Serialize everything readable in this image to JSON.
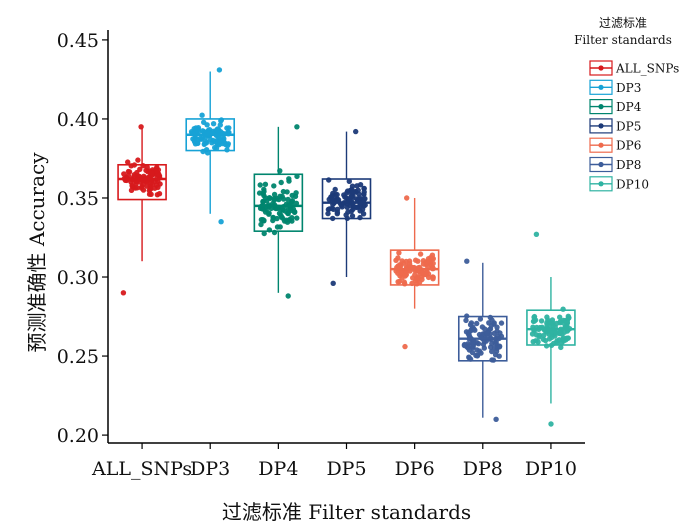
{
  "chart_data": {
    "type": "box",
    "xlabel": "过滤标准 Filter standards",
    "ylabel": "预测准确性 Accuracy",
    "ylim": [
      0.195,
      0.455
    ],
    "yticks": [
      "0.20",
      "0.25",
      "0.30",
      "0.35",
      "0.40",
      "0.45"
    ],
    "grid": false,
    "legend_position": "right",
    "legend_title": [
      "过滤标准",
      "Filter standards"
    ],
    "categories": [
      "ALL_SNPs",
      "DP3",
      "DP4",
      "DP5",
      "DP6",
      "DP8",
      "DP10"
    ],
    "series": [
      {
        "name": "ALL_SNPs",
        "color": "#d7191c",
        "whisker_low": 0.31,
        "q1": 0.349,
        "median": 0.362,
        "q3": 0.371,
        "whisker_high": 0.394,
        "min": 0.29,
        "max": 0.395
      },
      {
        "name": "DP3",
        "color": "#17a2d6",
        "whisker_low": 0.34,
        "q1": 0.38,
        "median": 0.39,
        "q3": 0.4,
        "whisker_high": 0.43,
        "min": 0.335,
        "max": 0.431
      },
      {
        "name": "DP4",
        "color": "#00856e",
        "whisker_low": 0.29,
        "q1": 0.329,
        "median": 0.345,
        "q3": 0.365,
        "whisker_high": 0.395,
        "min": 0.288,
        "max": 0.395
      },
      {
        "name": "DP5",
        "color": "#1c3a78",
        "whisker_low": 0.3,
        "q1": 0.337,
        "median": 0.347,
        "q3": 0.362,
        "whisker_high": 0.392,
        "min": 0.296,
        "max": 0.392
      },
      {
        "name": "DP6",
        "color": "#ee6a4d",
        "whisker_low": 0.28,
        "q1": 0.295,
        "median": 0.305,
        "q3": 0.317,
        "whisker_high": 0.35,
        "min": 0.256,
        "max": 0.35
      },
      {
        "name": "DP8",
        "color": "#3d5d9a",
        "whisker_low": 0.211,
        "q1": 0.247,
        "median": 0.261,
        "q3": 0.275,
        "whisker_high": 0.309,
        "min": 0.21,
        "max": 0.31
      },
      {
        "name": "DP10",
        "color": "#2fb3a2",
        "whisker_low": 0.22,
        "q1": 0.257,
        "median": 0.267,
        "q3": 0.279,
        "whisker_high": 0.3,
        "min": 0.207,
        "max": 0.327
      }
    ]
  }
}
